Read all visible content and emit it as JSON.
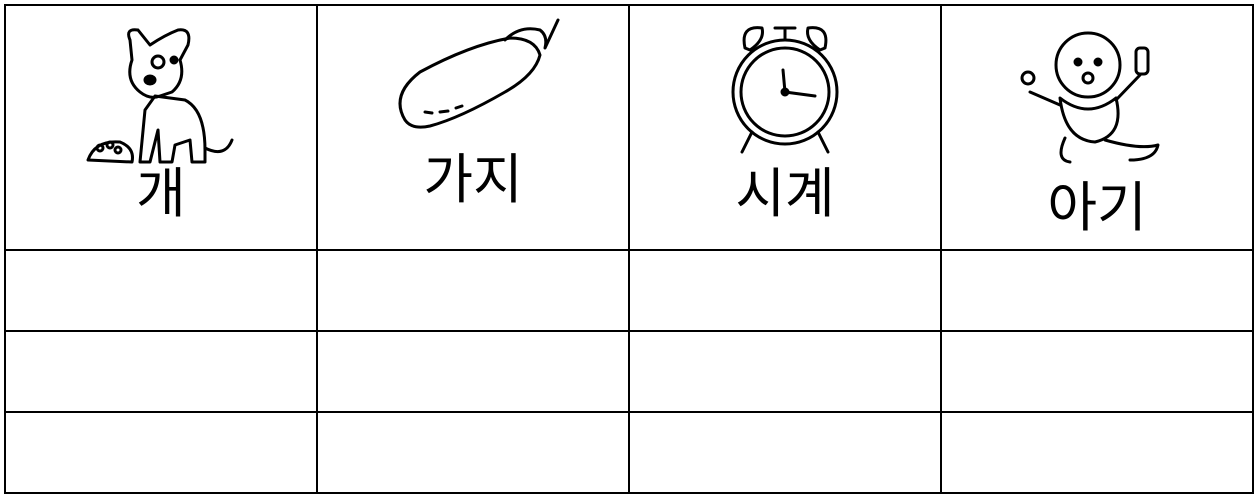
{
  "table": {
    "header": [
      "개",
      "가지",
      "시계",
      "아기"
    ]
  }
}
